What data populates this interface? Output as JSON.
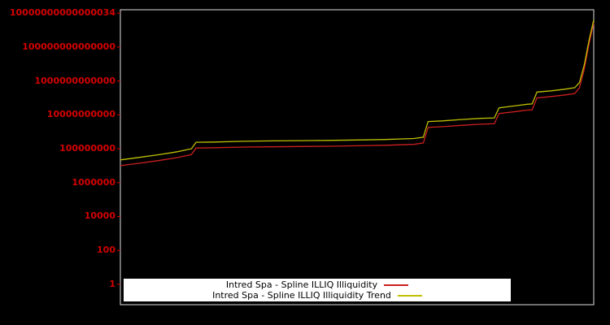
{
  "window": {
    "background": "#000000",
    "border_color": "#e0e0e0"
  },
  "chart_data": {
    "type": "line",
    "title": "",
    "xlabel": "",
    "ylabel": "",
    "grid": false,
    "legend_position": "lower center",
    "y_axis": {
      "scale": "log",
      "tick_color": "#d40000",
      "range_log10": [
        -1.2,
        16.2
      ],
      "tick_labels": [
        "1",
        "100",
        "10000",
        "1000000",
        "100000000",
        "10000000000",
        "1000000000000",
        "100000000000000",
        "10000000000000034"
      ]
    },
    "x_axis": {
      "tick_labels": []
    },
    "x": [
      0,
      4,
      8,
      12,
      15,
      16,
      20,
      26,
      32,
      38,
      44,
      50,
      56,
      62,
      64,
      65,
      68,
      72,
      76,
      79,
      80,
      83,
      86,
      87,
      88,
      91,
      94,
      96,
      97,
      98,
      99,
      100
    ],
    "series": [
      {
        "name": "Intred Spa - Spline ILLIQ Illiquidity",
        "color": "#cc1f1f",
        "values": [
          10000000.0,
          14000000.0,
          20000000.0,
          30000000.0,
          45000000.0,
          110000000.0,
          115000000.0,
          125000000.0,
          130000000.0,
          135000000.0,
          140000000.0,
          150000000.0,
          160000000.0,
          180000000.0,
          220000000.0,
          1800000000.0,
          2000000000.0,
          2400000000.0,
          2800000000.0,
          3000000000.0,
          12000000000.0,
          15000000000.0,
          19000000000.0,
          20000000000.0,
          100000000000.0,
          120000000000.0,
          150000000000.0,
          180000000000.0,
          400000000000.0,
          5000000000000.0,
          150000000000000.0,
          2700000000000000.0
        ]
      },
      {
        "name": "Intred Spa - Spline ILLIQ Illiquidity Trend",
        "color": "#bfbf00",
        "values": [
          22000000.0,
          31000000.0,
          44000000.0,
          66000000.0,
          100000000.0,
          240000000.0,
          250000000.0,
          275000000.0,
          290000000.0,
          300000000.0,
          310000000.0,
          330000000.0,
          350000000.0,
          400000000.0,
          480000000.0,
          4000000000.0,
          4400000000.0,
          5300000000.0,
          6200000000.0,
          6600000000.0,
          26000000000.0,
          33000000000.0,
          42000000000.0,
          44000000000.0,
          220000000000.0,
          260000000000.0,
          330000000000.0,
          400000000000.0,
          800000000000.0,
          9000000000000.0,
          250000000000000.0,
          4000000000000000.0
        ]
      }
    ]
  },
  "legend": {
    "entries": [
      {
        "label": "Intred Spa - Spline ILLIQ Illiquidity",
        "color": "#cc1f1f"
      },
      {
        "label": "Intred Spa - Spline ILLIQ Illiquidity Trend",
        "color": "#bfbf00"
      }
    ]
  }
}
